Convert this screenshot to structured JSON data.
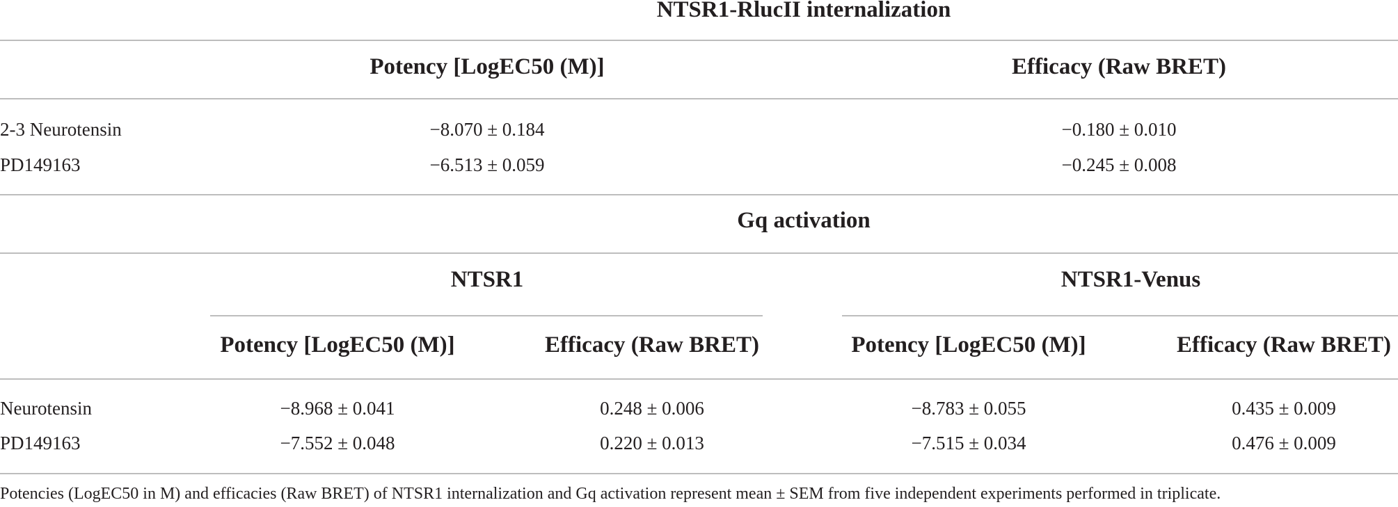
{
  "section1": {
    "title": "NTSR1-RlucII internalization",
    "headers": {
      "potency": "Potency [LogEC50 (M)]",
      "efficacy": "Efficacy (Raw BRET)"
    },
    "rows": [
      {
        "label": "2-3 Neurotensin",
        "potency": "−8.070 ± 0.184",
        "efficacy": "−0.180 ± 0.010"
      },
      {
        "label": "PD149163",
        "potency": "−6.513 ± 0.059",
        "efficacy": "−0.245 ± 0.008"
      }
    ]
  },
  "section2": {
    "title": "Gq activation",
    "groups": [
      "NTSR1",
      "NTSR1-Venus"
    ],
    "headers": {
      "potency": "Potency [LogEC50 (M)]",
      "efficacy": "Efficacy (Raw BRET)"
    },
    "rows": [
      {
        "label": "Neurotensin",
        "ntsr1_potency": "−8.968 ± 0.041",
        "ntsr1_efficacy": "0.248 ± 0.006",
        "venus_potency": "−8.783 ± 0.055",
        "venus_efficacy": "0.435 ± 0.009"
      },
      {
        "label": "PD149163",
        "ntsr1_potency": "−7.552 ± 0.048",
        "ntsr1_efficacy": "0.220 ± 0.013",
        "venus_potency": "−7.515 ± 0.034",
        "venus_efficacy": "0.476 ± 0.009"
      }
    ]
  },
  "footnote": "Potencies (LogEC50 in M) and efficacies (Raw BRET) of NTSR1 internalization and Gq activation represent mean ± SEM from five independent experiments performed in triplicate."
}
